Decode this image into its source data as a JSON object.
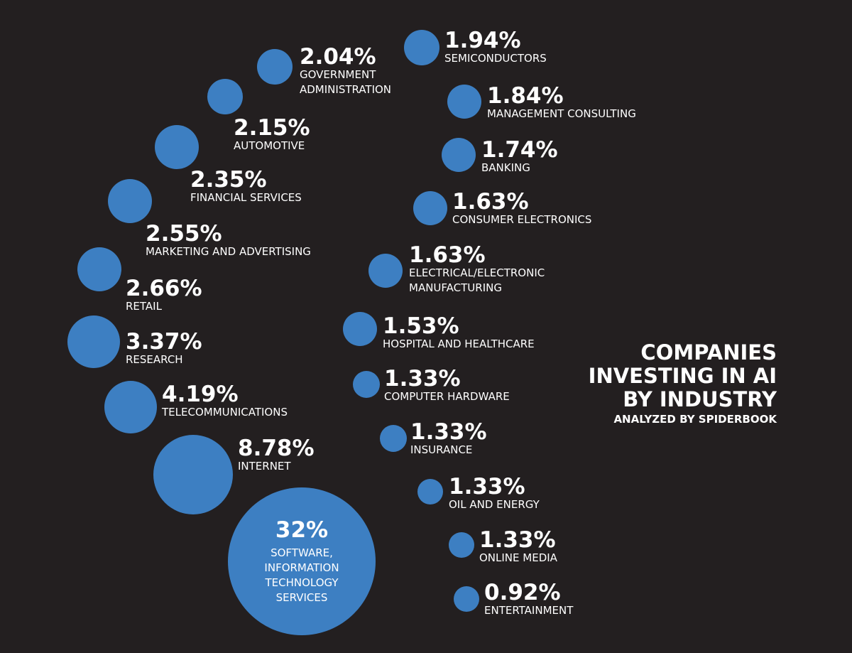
{
  "chart_data": {
    "type": "bubble",
    "title": [
      "COMPANIES",
      "INVESTING IN AI",
      "BY INDUSTRY"
    ],
    "subtitle": "ANALYZED BY SPIDERBOOK",
    "unit": "%",
    "colors": {
      "bubble": "#3d7fc2",
      "background": "#231f20",
      "text": "#ffffff"
    },
    "points": [
      {
        "category": [
          "SOFTWARE,",
          "INFORMATION",
          "TECHNOLOGY",
          "SERVICES"
        ],
        "value": 32,
        "label": "32%"
      },
      {
        "category": [
          "INTERNET"
        ],
        "value": 8.78,
        "label": "8.78%"
      },
      {
        "category": [
          "TELECOMMUNICATIONS"
        ],
        "value": 4.19,
        "label": "4.19%"
      },
      {
        "category": [
          "RESEARCH"
        ],
        "value": 3.37,
        "label": "3.37%"
      },
      {
        "category": [
          "RETAIL"
        ],
        "value": 2.66,
        "label": "2.66%"
      },
      {
        "category": [
          "MARKETING AND ADVERTISING"
        ],
        "value": 2.55,
        "label": "2.55%"
      },
      {
        "category": [
          "FINANCIAL SERVICES"
        ],
        "value": 2.35,
        "label": "2.35%"
      },
      {
        "category": [
          "AUTOMOTIVE"
        ],
        "value": 2.15,
        "label": "2.15%"
      },
      {
        "category": [
          "GOVERNMENT",
          "ADMINISTRATION"
        ],
        "value": 2.04,
        "label": "2.04%"
      },
      {
        "category": [
          "SEMICONDUCTORS"
        ],
        "value": 1.94,
        "label": "1.94%"
      },
      {
        "category": [
          "MANAGEMENT CONSULTING"
        ],
        "value": 1.84,
        "label": "1.84%"
      },
      {
        "category": [
          "BANKING"
        ],
        "value": 1.74,
        "label": "1.74%"
      },
      {
        "category": [
          "CONSUMER ELECTRONICS"
        ],
        "value": 1.63,
        "label": "1.63%"
      },
      {
        "category": [
          "ELECTRICAL/ELECTRONIC",
          "MANUFACTURING"
        ],
        "value": 1.63,
        "label": "1.63%"
      },
      {
        "category": [
          "HOSPITAL AND HEALTHCARE"
        ],
        "value": 1.53,
        "label": "1.53%"
      },
      {
        "category": [
          "COMPUTER HARDWARE"
        ],
        "value": 1.33,
        "label": "1.33%"
      },
      {
        "category": [
          "INSURANCE"
        ],
        "value": 1.33,
        "label": "1.33%"
      },
      {
        "category": [
          "OIL AND ENERGY"
        ],
        "value": 1.33,
        "label": "1.33%"
      },
      {
        "category": [
          "ONLINE MEDIA"
        ],
        "value": 1.33,
        "label": "1.33%"
      },
      {
        "category": [
          "ENTERTAINMENT"
        ],
        "value": 0.92,
        "label": "0.92%"
      }
    ]
  }
}
